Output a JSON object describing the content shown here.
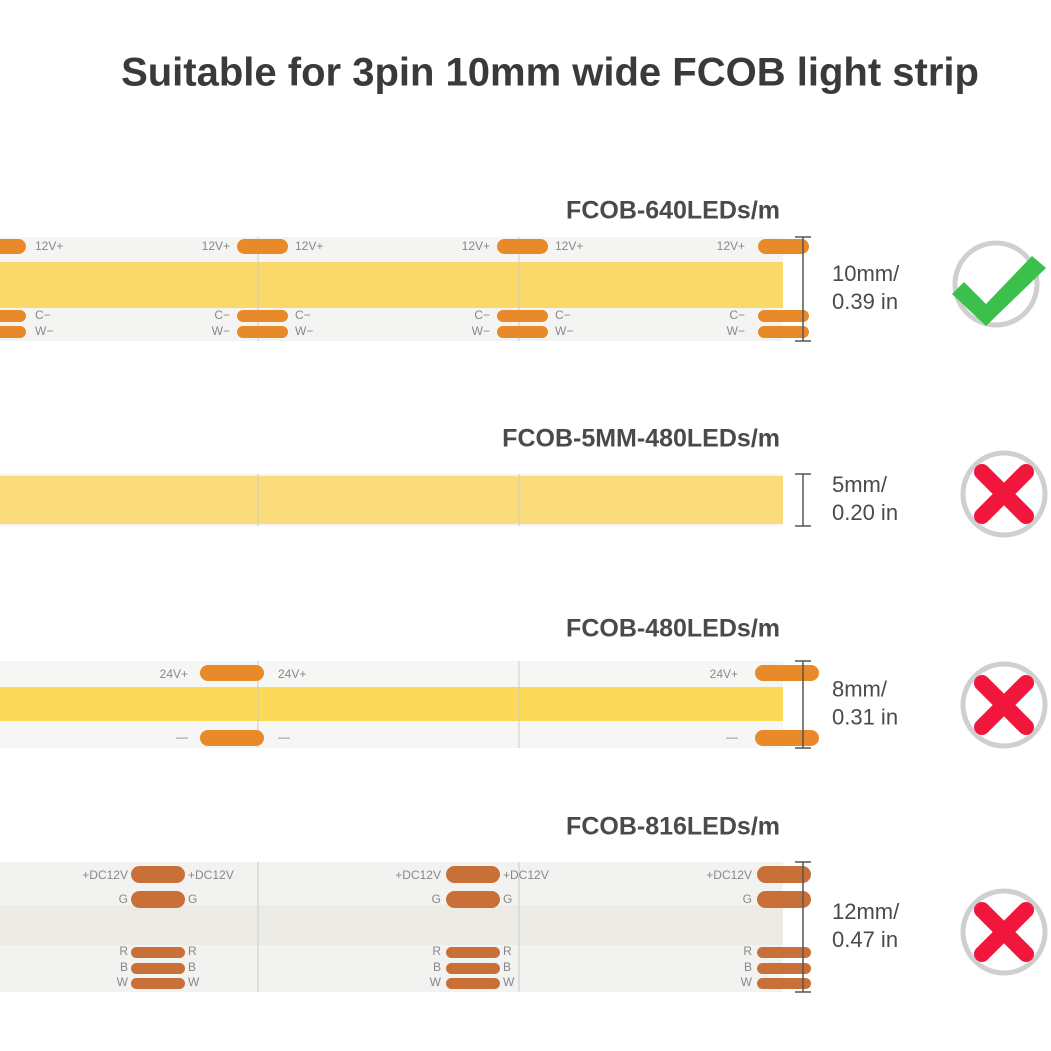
{
  "title": "Suitable for 3pin 10mm wide FCOB light strip",
  "strips": [
    {
      "name": "FCOB-640LEDs/m",
      "width_mm": "10mm/",
      "width_in": "0.39 in",
      "suitable": true,
      "pad_labels": [
        "12V+",
        "C−",
        "W−"
      ]
    },
    {
      "name": "FCOB-5MM-480LEDs/m",
      "width_mm": "5mm/",
      "width_in": "0.20 in",
      "suitable": false,
      "pad_labels": []
    },
    {
      "name": "FCOB-480LEDs/m",
      "width_mm": "8mm/",
      "width_in": "0.31 in",
      "suitable": false,
      "pad_labels": [
        "24V+",
        "—"
      ]
    },
    {
      "name": "FCOB-816LEDs/m",
      "width_mm": "12mm/",
      "width_in": "0.47 in",
      "suitable": false,
      "pad_labels": [
        "+DC12V",
        "G",
        "R",
        "B",
        "W"
      ]
    }
  ]
}
